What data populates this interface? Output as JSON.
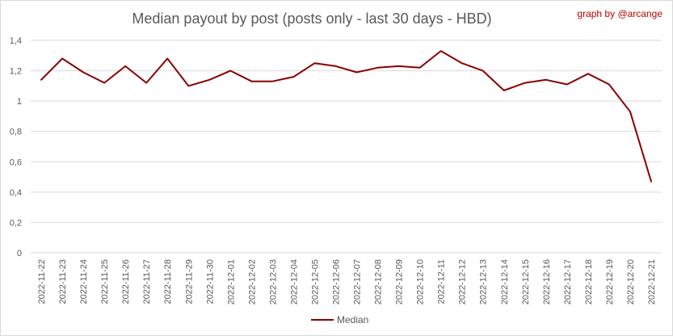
{
  "chart_data": {
    "type": "line",
    "title": "Median payout by post (posts only - last 30 days - HBD)",
    "credit": "graph by @arcange",
    "xlabel": "",
    "ylabel": "",
    "ylim": [
      0,
      1.4
    ],
    "yticks": [
      "0",
      "0,2",
      "0,4",
      "0,6",
      "0,8",
      "1",
      "1,2",
      "1,4"
    ],
    "grid": true,
    "legend_position": "bottom",
    "categories": [
      "2022-11-22",
      "2022-11-23",
      "2022-11-24",
      "2022-11-25",
      "2022-11-26",
      "2022-11-27",
      "2022-11-28",
      "2022-11-29",
      "2022-11-30",
      "2022-12-01",
      "2022-12-02",
      "2022-12-03",
      "2022-12-04",
      "2022-12-05",
      "2022-12-06",
      "2022-12-07",
      "2022-12-08",
      "2022-12-09",
      "2022-12-10",
      "2022-12-11",
      "2022-12-12",
      "2022-12-13",
      "2022-12-14",
      "2022-12-15",
      "2022-12-16",
      "2022-12-17",
      "2022-12-18",
      "2022-12-19",
      "2022-12-20",
      "2022-12-21"
    ],
    "series": [
      {
        "name": "Median",
        "color": "#8b0000",
        "values": [
          1.14,
          1.28,
          1.19,
          1.12,
          1.23,
          1.12,
          1.28,
          1.1,
          1.14,
          1.2,
          1.13,
          1.13,
          1.16,
          1.25,
          1.23,
          1.19,
          1.22,
          1.23,
          1.22,
          1.33,
          1.25,
          1.2,
          1.07,
          1.12,
          1.14,
          1.11,
          1.18,
          1.11,
          0.93,
          0.47
        ]
      }
    ]
  }
}
